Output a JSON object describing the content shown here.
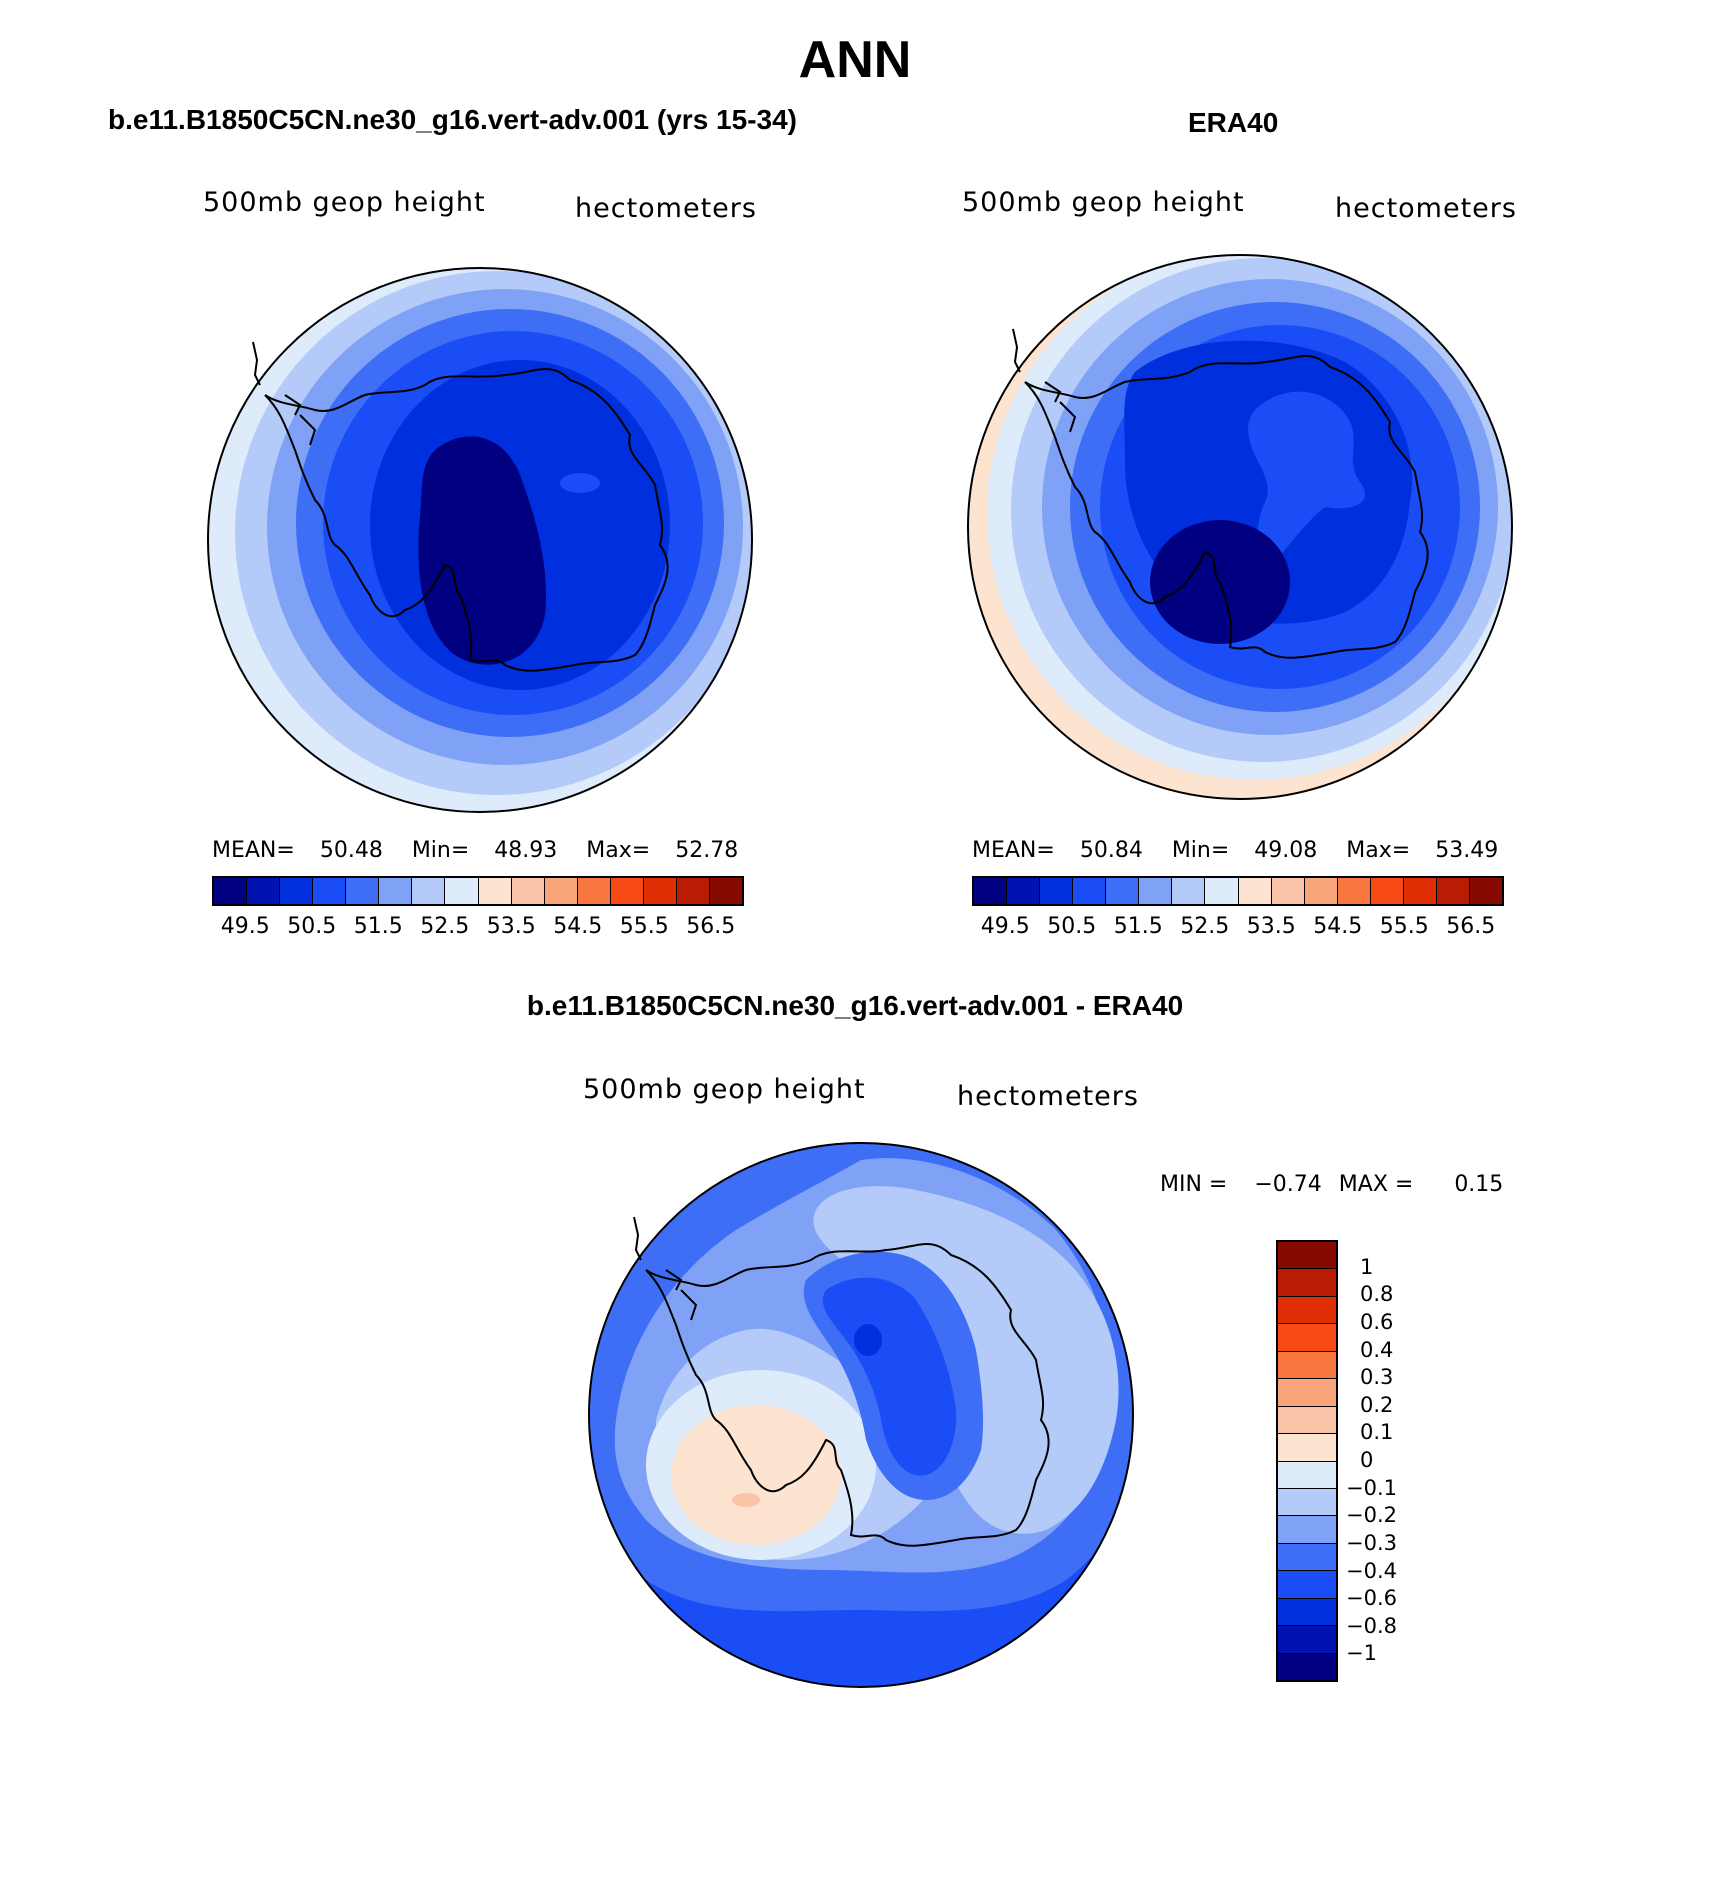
{
  "figure": {
    "title": "ANN"
  },
  "panels": {
    "model": {
      "title": "b.e11.B1850C5CN.ne30_g16.vert-adv.001 (yrs 15-34)",
      "variable": "500mb geop height",
      "units": "hectometers",
      "stats": {
        "mean_label": "MEAN=",
        "mean": "50.48",
        "min_label": "Min=",
        "min": "48.93",
        "max_label": "Max=",
        "max": "52.78"
      }
    },
    "obs": {
      "title": "ERA40",
      "variable": "500mb geop height",
      "units": "hectometers",
      "stats": {
        "mean_label": "MEAN=",
        "mean": "50.84",
        "min_label": "Min=",
        "min": "49.08",
        "max_label": "Max=",
        "max": "53.49"
      }
    },
    "diff": {
      "title": "b.e11.B1850C5CN.ne30_g16.vert-adv.001 - ERA40",
      "variable": "500mb geop height",
      "units": "hectometers",
      "stats": {
        "min_label": "MIN =",
        "min": "−0.74",
        "max_label": "MAX =",
        "max": "0.15"
      }
    }
  },
  "colorbar_abs": {
    "colors": [
      "#000080",
      "#0012b0",
      "#0030dd",
      "#1a4df5",
      "#3d6ef5",
      "#7fa2f7",
      "#b4caf9",
      "#ddebfb",
      "#fde4d0",
      "#f9c4a8",
      "#f8a57c",
      "#f8773f",
      "#f84a14",
      "#e02e05",
      "#b81c02",
      "#870a00"
    ],
    "labels": [
      "49.5",
      "50.5",
      "51.5",
      "52.5",
      "53.5",
      "54.5",
      "55.5",
      "56.5"
    ]
  },
  "colorbar_diff": {
    "colors_top_to_bottom": [
      "#870a00",
      "#b81c02",
      "#e02e05",
      "#f84a14",
      "#f8773f",
      "#f8a57c",
      "#f9c4a8",
      "#fde4d0",
      "#ddebfb",
      "#b4caf9",
      "#7fa2f7",
      "#3d6ef5",
      "#1a4df5",
      "#0030dd",
      "#0012b0",
      "#000080"
    ],
    "labels": [
      "1",
      "0.8",
      "0.6",
      "0.4",
      "0.3",
      "0.2",
      "0.1",
      "0",
      "−0.1",
      "−0.2",
      "−0.3",
      "−0.4",
      "−0.6",
      "−0.8",
      "−1"
    ]
  },
  "colors": {
    "land_outline": "#000000",
    "map_border": "#000000"
  }
}
